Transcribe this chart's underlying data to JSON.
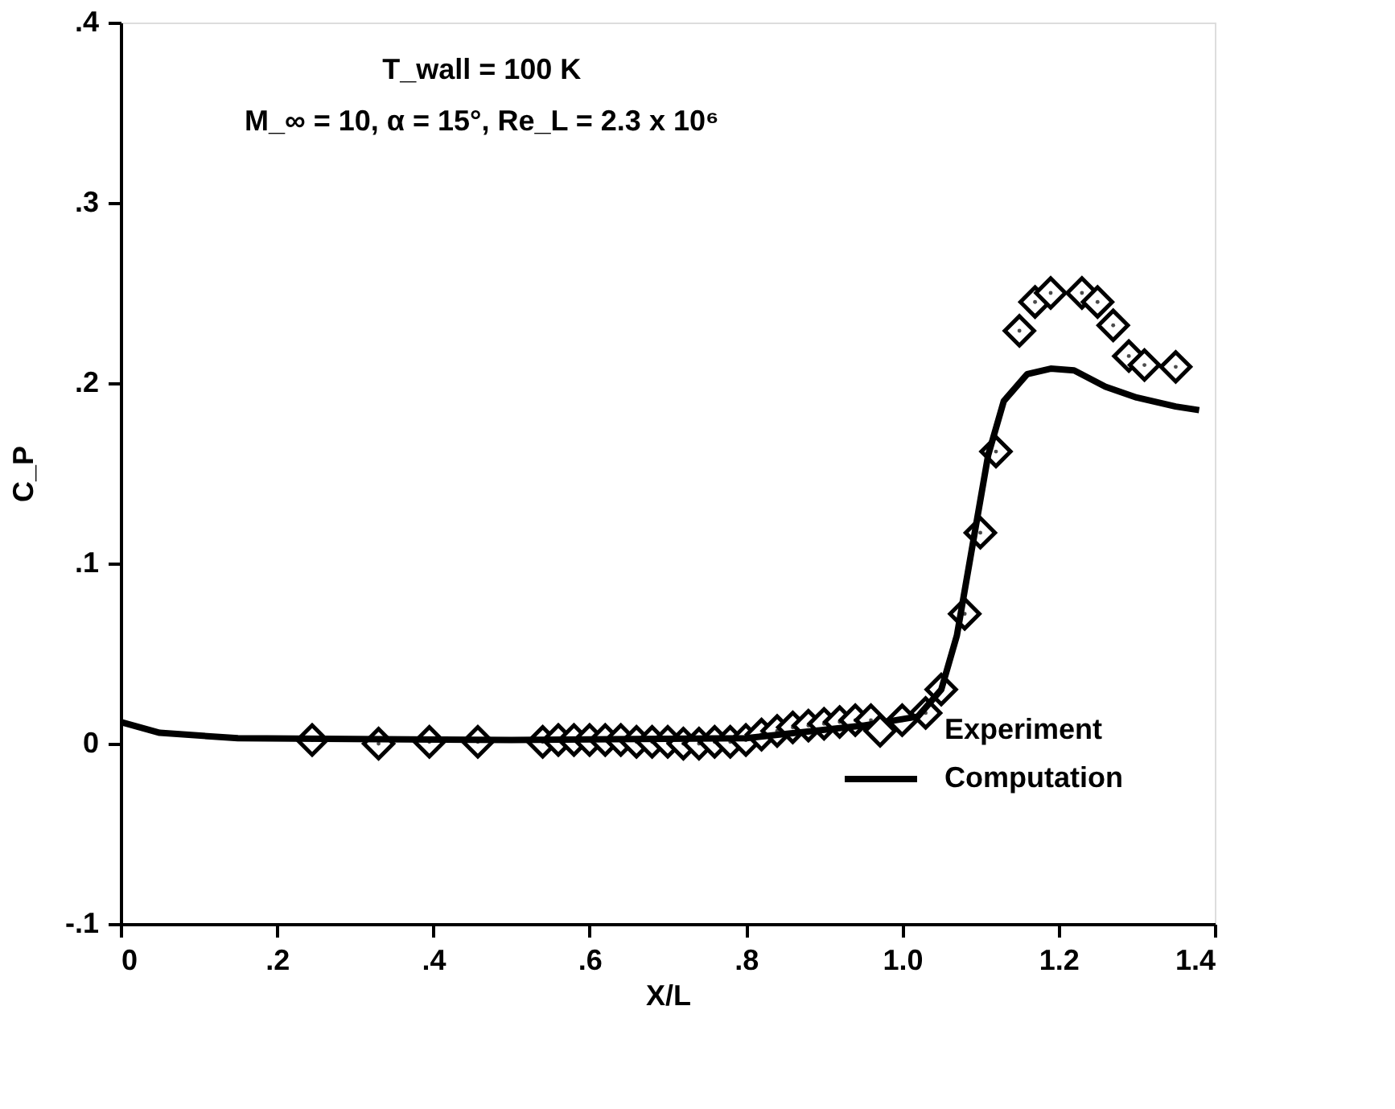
{
  "chart_data": {
    "type": "scatter",
    "annotations": [
      "T_wall = 100 K",
      "M_∞ = 10, α = 15°,  Re_L = 2.3 x 10⁶"
    ],
    "xlabel": "X/L",
    "ylabel": "C_P",
    "xlim": [
      0,
      1.4
    ],
    "xticks": [
      0,
      {
        "value": 0.2,
        "label": ".2"
      },
      {
        "value": 0.4,
        "label": ".4"
      },
      {
        "value": 0.6,
        "label": ".6"
      },
      {
        "value": 0.8,
        "label": ".8"
      },
      {
        "value": 1.0,
        "label": "1.0"
      },
      {
        "value": 1.2,
        "label": "1.2"
      },
      {
        "value": 1.4,
        "label": "1.4"
      }
    ],
    "ylim": [
      -0.1,
      0.4
    ],
    "yticks": [
      {
        "value": -0.1,
        "label": "-.1"
      },
      0,
      {
        "value": 0.1,
        "label": ".1"
      },
      {
        "value": 0.2,
        "label": ".2"
      },
      {
        "value": 0.3,
        "label": ".3"
      },
      {
        "value": 0.4,
        "label": ".4"
      }
    ],
    "grid": false,
    "legend": "bottom right",
    "series": [
      {
        "name": "Experiment",
        "marker": "diamond",
        "color": "#000000",
        "x": [
          0.245,
          0.33,
          0.395,
          0.457,
          0.54,
          0.56,
          0.58,
          0.6,
          0.62,
          0.64,
          0.66,
          0.68,
          0.7,
          0.72,
          0.74,
          0.76,
          0.78,
          0.8,
          0.82,
          0.84,
          0.86,
          0.88,
          0.9,
          0.92,
          0.94,
          0.96,
          1.0,
          1.03,
          1.05,
          1.08,
          1.1,
          1.12,
          1.15,
          1.17,
          1.19,
          1.23,
          1.25,
          1.27,
          1.29,
          1.31,
          1.35
        ],
        "values": [
          0.002,
          0.0,
          0.001,
          0.001,
          0.001,
          0.002,
          0.002,
          0.002,
          0.002,
          0.002,
          0.001,
          0.001,
          0.001,
          0.0,
          0.0,
          0.001,
          0.001,
          0.002,
          0.005,
          0.007,
          0.009,
          0.01,
          0.011,
          0.012,
          0.013,
          0.013,
          0.013,
          0.017,
          0.03,
          0.072,
          0.117,
          0.162,
          0.229,
          0.245,
          0.25,
          0.25,
          0.245,
          0.232,
          0.215,
          0.21,
          0.209
        ]
      },
      {
        "name": "Computation",
        "type": "line",
        "marker": "none",
        "line_style": "solid",
        "color": "#000000",
        "x": [
          0,
          0.05,
          0.15,
          0.5,
          0.8,
          0.95,
          1.02,
          1.05,
          1.07,
          1.09,
          1.11,
          1.13,
          1.16,
          1.19,
          1.22,
          1.26,
          1.3,
          1.35,
          1.38
        ],
        "values": [
          0.012,
          0.006,
          0.003,
          0.002,
          0.003,
          0.01,
          0.015,
          0.03,
          0.06,
          0.11,
          0.16,
          0.19,
          0.205,
          0.208,
          0.207,
          0.198,
          0.192,
          0.187,
          0.185
        ]
      }
    ]
  }
}
